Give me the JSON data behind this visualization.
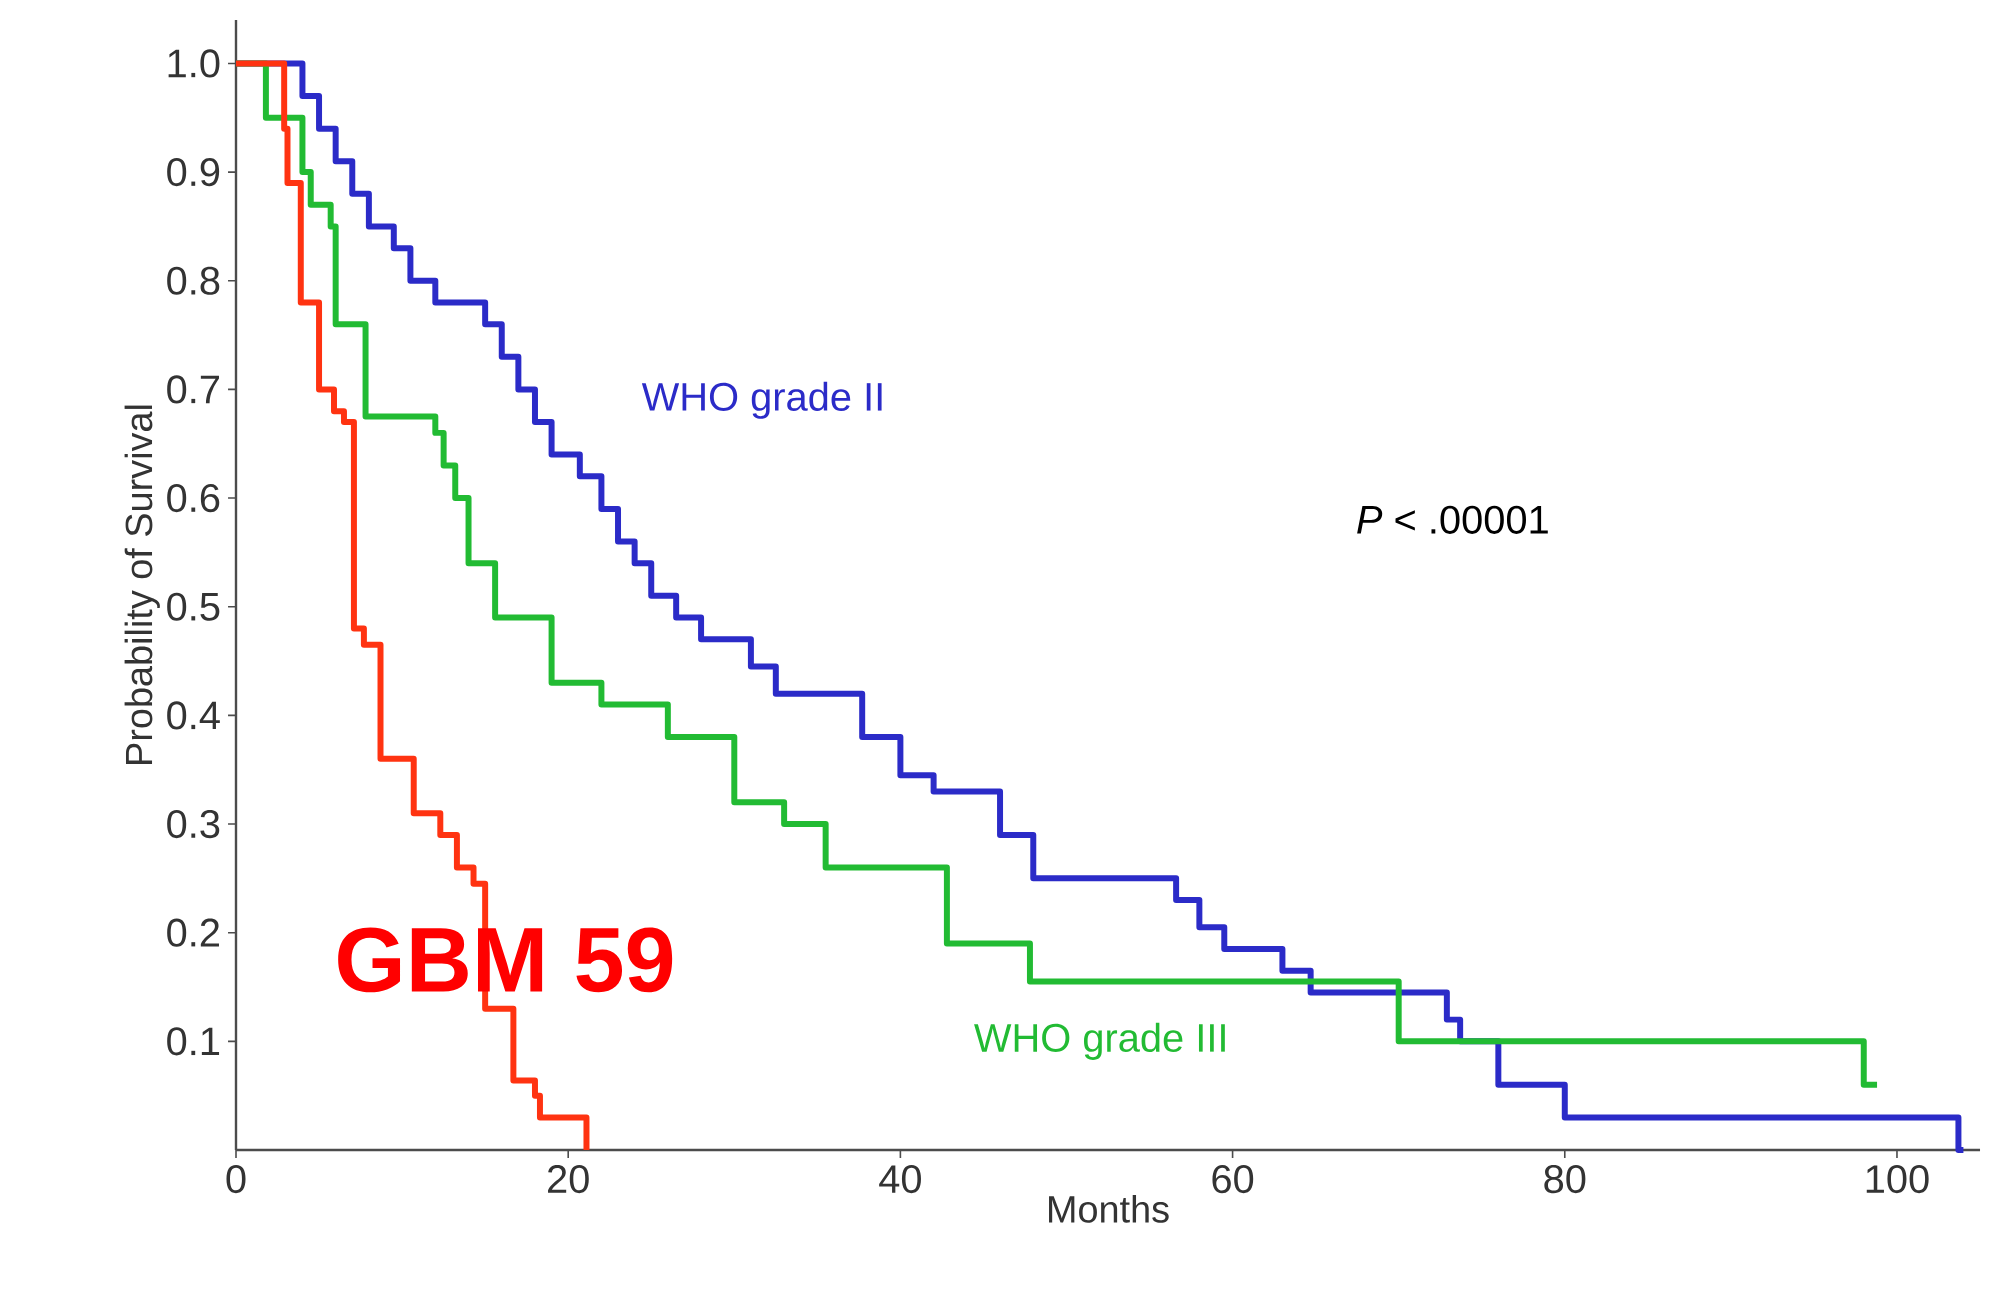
{
  "chart_data": {
    "type": "step",
    "xlabel": "Months",
    "ylabel": "Probability of Survival",
    "xlim": [
      0,
      105
    ],
    "ylim": [
      0,
      1.04
    ],
    "xticks": [
      0,
      20,
      40,
      60,
      80,
      100
    ],
    "yticks": [
      0.1,
      0.2,
      0.3,
      0.4,
      0.5,
      0.6,
      0.7,
      0.8,
      0.9,
      {
        "value": 1,
        "label": "1.0"
      }
    ],
    "annotations": [
      "*P* < .00001",
      "GBM 59"
    ],
    "series": [
      {
        "name": "WHO grade II",
        "color": "#2b2bc8",
        "x": [
          0,
          4,
          5,
          6,
          7,
          8,
          9.5,
          10.5,
          12,
          15,
          16,
          17,
          18,
          19,
          20.7,
          22,
          23,
          24,
          25,
          26.5,
          28,
          31,
          32.5,
          37.7,
          40,
          42,
          46,
          48,
          56.6,
          58,
          59.5,
          63,
          64.7,
          72.9,
          73.7,
          76,
          80,
          103.7,
          104
        ],
        "values": [
          1.0,
          0.97,
          0.94,
          0.91,
          0.88,
          0.85,
          0.83,
          0.8,
          0.78,
          0.76,
          0.73,
          0.7,
          0.67,
          0.64,
          0.62,
          0.59,
          0.56,
          0.54,
          0.51,
          0.49,
          0.47,
          0.445,
          0.42,
          0.38,
          0.345,
          0.33,
          0.29,
          0.25,
          0.23,
          0.205,
          0.185,
          0.165,
          0.145,
          0.12,
          0.1,
          0.06,
          0.03,
          0.0,
          0.0
        ]
      },
      {
        "name": "WHO grade III",
        "color": "#22bb33",
        "x": [
          0,
          1.8,
          4,
          4.5,
          5.7,
          6,
          7.8,
          12,
          12.5,
          13.2,
          14,
          15.6,
          19,
          22,
          26,
          30,
          33,
          35.5,
          42.8,
          47.8,
          70,
          98,
          98.8
        ],
        "values": [
          1.0,
          0.95,
          0.9,
          0.87,
          0.85,
          0.76,
          0.675,
          0.66,
          0.63,
          0.6,
          0.54,
          0.49,
          0.43,
          0.41,
          0.38,
          0.32,
          0.3,
          0.26,
          0.19,
          0.155,
          0.1,
          0.06,
          0.06
        ]
      },
      {
        "color": "#ff3311",
        "x": [
          0,
          2.9,
          3.1,
          3.9,
          5,
          5.9,
          6.5,
          7.1,
          7.7,
          8.7,
          10.7,
          12.3,
          13.3,
          14.3,
          15,
          16.7,
          18,
          18.3,
          21.1
        ],
        "values": [
          1.0,
          0.94,
          0.89,
          0.78,
          0.7,
          0.68,
          0.67,
          0.48,
          0.465,
          0.36,
          0.31,
          0.29,
          0.26,
          0.245,
          0.13,
          0.064,
          0.05,
          0.03,
          0.0
        ]
      }
    ]
  }
}
